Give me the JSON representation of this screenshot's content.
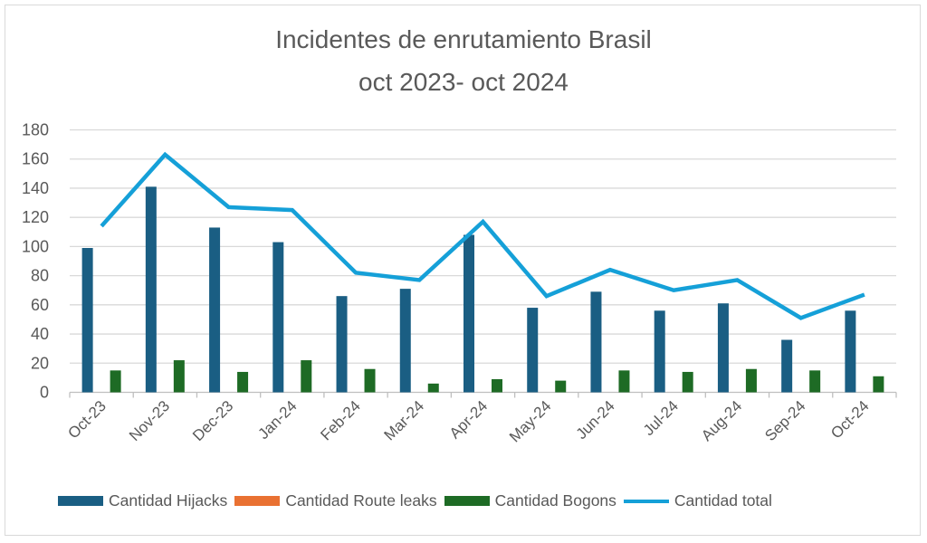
{
  "chart_data": {
    "type": "bar",
    "title": [
      "Incidentes de enrutamiento Brasil",
      "oct 2023- oct 2024"
    ],
    "xlabel": "",
    "ylabel": "",
    "ylim": [
      0,
      180
    ],
    "yticks": [
      "0",
      "20",
      "40",
      "60",
      "80",
      "100",
      "120",
      "140",
      "160",
      "180"
    ],
    "grid": true,
    "legend_position": "bottom",
    "categories": [
      "Oct-23",
      "Nov-23",
      "Dec-23",
      "Jan-24",
      "Feb-24",
      "Mar-24",
      "Apr-24",
      "May-24",
      "Jun-24",
      "Jul-24",
      "Aug-24",
      "Sep-24",
      "Oct-24"
    ],
    "series": [
      {
        "name": "Cantidad Hijacks",
        "type": "bar",
        "color": "#1a5e83",
        "values": [
          99,
          141,
          113,
          103,
          66,
          71,
          108,
          58,
          69,
          56,
          61,
          36,
          56
        ]
      },
      {
        "name": "Cantidad Route leaks",
        "type": "bar",
        "color": "#e97132",
        "values": [
          0,
          0,
          0,
          0,
          0,
          0,
          0,
          0,
          0,
          0,
          0,
          0,
          0
        ]
      },
      {
        "name": "Cantidad Bogons",
        "type": "bar",
        "color": "#1e6b25",
        "values": [
          15,
          22,
          14,
          22,
          16,
          6,
          9,
          8,
          15,
          14,
          16,
          15,
          11
        ]
      },
      {
        "name": "Cantidad total",
        "type": "line",
        "color": "#15a0d8",
        "values": [
          114,
          163,
          127,
          125,
          82,
          77,
          117,
          66,
          84,
          70,
          77,
          51,
          67
        ]
      }
    ]
  }
}
